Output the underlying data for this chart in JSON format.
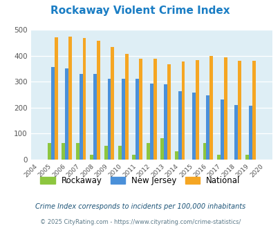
{
  "title": "Rockaway Violent Crime Index",
  "years": [
    2004,
    2005,
    2006,
    2007,
    2008,
    2009,
    2010,
    2011,
    2012,
    2013,
    2014,
    2015,
    2016,
    2017,
    2018,
    2019,
    2020
  ],
  "rockaway": [
    0,
    65,
    65,
    65,
    18,
    52,
    52,
    18,
    65,
    82,
    33,
    0,
    65,
    18,
    0,
    18,
    0
  ],
  "new_jersey": [
    0,
    355,
    350,
    330,
    330,
    312,
    310,
    310,
    293,
    290,
    262,
    257,
    248,
    231,
    211,
    208,
    0
  ],
  "national": [
    0,
    470,
    474,
    468,
    456,
    432,
    406,
    389,
    389,
    368,
    378,
    384,
    399,
    394,
    381,
    380,
    0
  ],
  "colors": {
    "rockaway": "#8dc63f",
    "new_jersey": "#4a90d9",
    "national": "#f5a623"
  },
  "bg_color": "#deeef5",
  "ylim": [
    0,
    500
  ],
  "yticks": [
    0,
    100,
    200,
    300,
    400,
    500
  ],
  "subtitle": "Crime Index corresponds to incidents per 100,000 inhabitants",
  "footer": "© 2025 CityRating.com - https://www.cityrating.com/crime-statistics/",
  "title_color": "#1a7dc4",
  "subtitle_color": "#1a5276",
  "footer_color": "#5d7b8a"
}
